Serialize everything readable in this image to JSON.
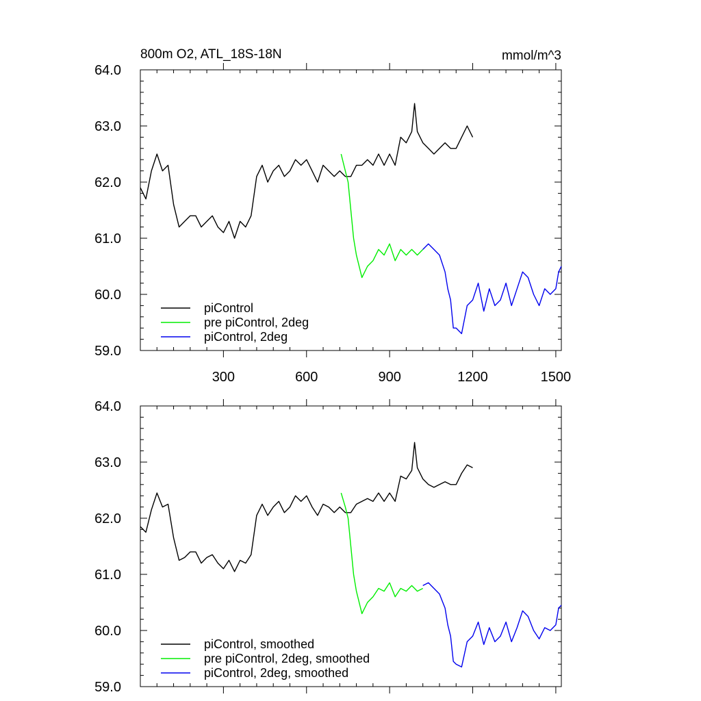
{
  "chart_data": [
    {
      "type": "line",
      "title": "800m O2, ATL_18S-18N",
      "units": "mmol/m^3",
      "xlabel": "",
      "ylabel": "",
      "xlim": [
        0,
        1520
      ],
      "ylim": [
        59.0,
        64.0
      ],
      "xticks": [
        "300",
        "600",
        "900",
        "1200",
        "1500"
      ],
      "yticks": [
        "64.0",
        "63.0",
        "62.0",
        "61.0",
        "60.0",
        "59.0"
      ],
      "legend_position": "bottom-left",
      "colors": {
        "piControl": "#000000",
        "pre": "#00ee00",
        "twodeg": "#0000ee"
      },
      "series": [
        {
          "name": "piControl",
          "color": "#000000",
          "x": [
            0,
            20,
            40,
            60,
            80,
            100,
            120,
            140,
            160,
            180,
            200,
            220,
            240,
            260,
            280,
            300,
            320,
            340,
            360,
            380,
            400,
            420,
            440,
            460,
            480,
            500,
            520,
            540,
            560,
            580,
            600,
            620,
            640,
            660,
            680,
            700,
            720,
            740,
            760,
            780,
            800,
            820,
            840,
            860,
            880,
            900,
            920,
            940,
            960,
            980,
            990,
            1000,
            1020,
            1040,
            1060,
            1080,
            1100,
            1120,
            1140,
            1160,
            1180,
            1200
          ],
          "y": [
            61.9,
            61.7,
            62.2,
            62.5,
            62.2,
            62.3,
            61.6,
            61.2,
            61.3,
            61.4,
            61.4,
            61.2,
            61.3,
            61.4,
            61.2,
            61.1,
            61.3,
            61.0,
            61.3,
            61.2,
            61.4,
            62.1,
            62.3,
            62.0,
            62.2,
            62.3,
            62.1,
            62.2,
            62.4,
            62.3,
            62.4,
            62.2,
            62.0,
            62.3,
            62.2,
            62.1,
            62.2,
            62.1,
            62.1,
            62.3,
            62.3,
            62.4,
            62.3,
            62.5,
            62.3,
            62.5,
            62.3,
            62.8,
            62.7,
            62.9,
            63.4,
            62.9,
            62.7,
            62.6,
            62.5,
            62.6,
            62.7,
            62.6,
            62.6,
            62.8,
            63.0,
            62.8
          ]
        },
        {
          "name": "pre piControl, 2deg",
          "color": "#00ee00",
          "x": [
            725,
            740,
            750,
            760,
            770,
            780,
            800,
            820,
            840,
            860,
            880,
            900,
            920,
            940,
            960,
            980,
            1000,
            1020
          ],
          "y": [
            62.5,
            62.2,
            62.0,
            61.5,
            61.0,
            60.7,
            60.3,
            60.5,
            60.6,
            60.8,
            60.7,
            60.9,
            60.6,
            60.8,
            60.7,
            60.8,
            60.7,
            60.8
          ]
        },
        {
          "name": "piControl, 2deg",
          "color": "#0000ee",
          "x": [
            1020,
            1040,
            1060,
            1080,
            1100,
            1110,
            1120,
            1130,
            1140,
            1160,
            1180,
            1200,
            1220,
            1240,
            1260,
            1280,
            1300,
            1320,
            1340,
            1360,
            1380,
            1400,
            1420,
            1440,
            1460,
            1480,
            1500,
            1510,
            1520
          ],
          "y": [
            60.8,
            60.9,
            60.8,
            60.7,
            60.4,
            60.1,
            59.9,
            59.4,
            59.4,
            59.3,
            59.8,
            59.9,
            60.2,
            59.7,
            60.1,
            59.8,
            59.9,
            60.2,
            59.8,
            60.1,
            60.4,
            60.3,
            60.0,
            59.8,
            60.1,
            60.0,
            60.1,
            60.4,
            60.5
          ]
        }
      ]
    },
    {
      "type": "line",
      "title": "",
      "xlabel": "",
      "ylabel": "",
      "xlim": [
        0,
        1520
      ],
      "ylim": [
        59.0,
        64.0
      ],
      "yticks": [
        "64.0",
        "63.0",
        "62.0",
        "61.0",
        "60.0",
        "59.0"
      ],
      "legend_position": "bottom-left",
      "series": [
        {
          "name": "piControl, smoothed",
          "color": "#000000",
          "x": [
            0,
            20,
            40,
            60,
            80,
            100,
            120,
            140,
            160,
            180,
            200,
            220,
            240,
            260,
            280,
            300,
            320,
            340,
            360,
            380,
            400,
            420,
            440,
            460,
            480,
            500,
            520,
            540,
            560,
            580,
            600,
            620,
            640,
            660,
            680,
            700,
            720,
            740,
            760,
            780,
            800,
            820,
            840,
            860,
            880,
            900,
            920,
            940,
            960,
            980,
            990,
            1000,
            1020,
            1040,
            1060,
            1080,
            1100,
            1120,
            1140,
            1160,
            1180,
            1200
          ],
          "y": [
            61.85,
            61.75,
            62.15,
            62.45,
            62.2,
            62.25,
            61.65,
            61.25,
            61.3,
            61.4,
            61.4,
            61.2,
            61.3,
            61.35,
            61.2,
            61.1,
            61.25,
            61.05,
            61.25,
            61.2,
            61.35,
            62.05,
            62.25,
            62.05,
            62.2,
            62.3,
            62.1,
            62.2,
            62.4,
            62.3,
            62.4,
            62.2,
            62.05,
            62.25,
            62.2,
            62.1,
            62.2,
            62.1,
            62.1,
            62.25,
            62.3,
            62.35,
            62.3,
            62.45,
            62.3,
            62.45,
            62.3,
            62.75,
            62.7,
            62.85,
            63.35,
            62.9,
            62.7,
            62.6,
            62.55,
            62.6,
            62.65,
            62.6,
            62.6,
            62.8,
            62.95,
            62.9
          ]
        },
        {
          "name": "pre piControl, 2deg, smoothed",
          "color": "#00ee00",
          "x": [
            725,
            740,
            750,
            760,
            770,
            780,
            800,
            820,
            840,
            860,
            880,
            900,
            920,
            940,
            960,
            980,
            1000,
            1020
          ],
          "y": [
            62.45,
            62.2,
            62.0,
            61.5,
            61.0,
            60.7,
            60.3,
            60.5,
            60.6,
            60.75,
            60.7,
            60.85,
            60.6,
            60.75,
            60.7,
            60.8,
            60.7,
            60.75
          ]
        },
        {
          "name": "piControl, 2deg, smoothed",
          "color": "#0000ee",
          "x": [
            1020,
            1040,
            1060,
            1080,
            1100,
            1110,
            1120,
            1130,
            1140,
            1160,
            1180,
            1200,
            1220,
            1240,
            1260,
            1280,
            1300,
            1320,
            1340,
            1360,
            1380,
            1400,
            1420,
            1440,
            1460,
            1480,
            1500,
            1510,
            1520
          ],
          "y": [
            60.8,
            60.85,
            60.75,
            60.65,
            60.4,
            60.1,
            59.9,
            59.45,
            59.4,
            59.35,
            59.8,
            59.9,
            60.15,
            59.75,
            60.05,
            59.8,
            59.9,
            60.15,
            59.8,
            60.05,
            60.35,
            60.25,
            60.0,
            59.85,
            60.05,
            60.0,
            60.1,
            60.4,
            60.45
          ]
        }
      ]
    }
  ]
}
